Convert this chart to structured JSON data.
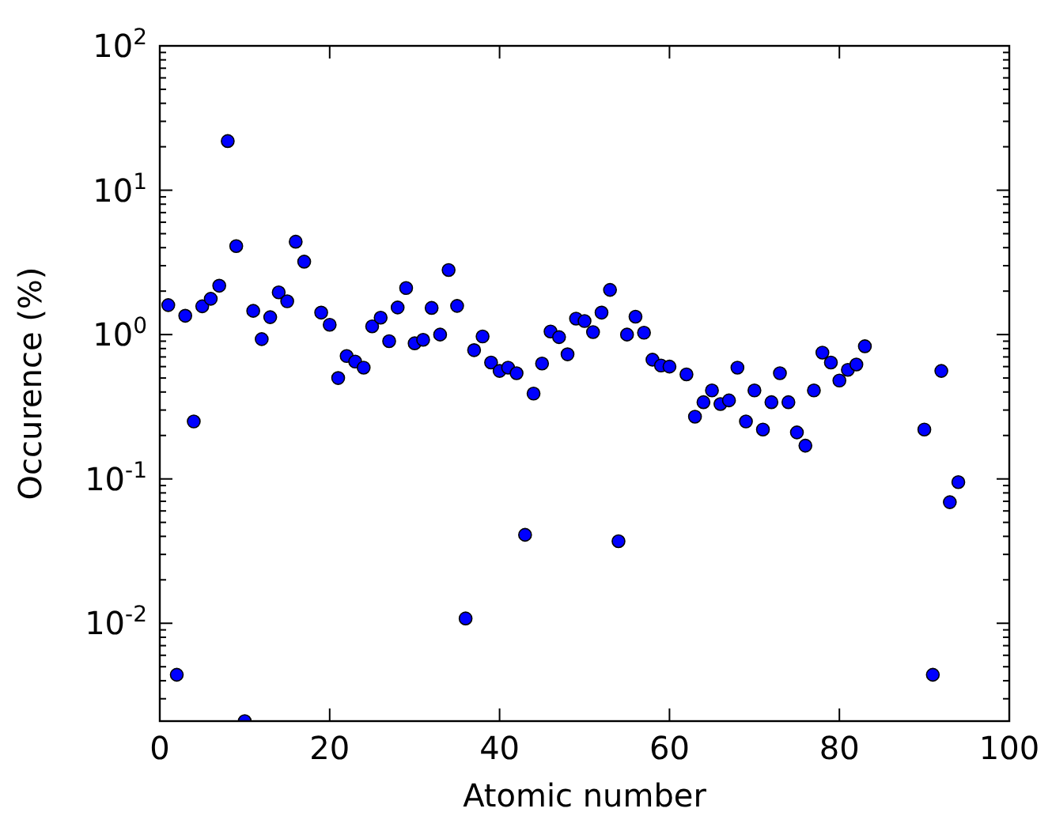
{
  "chart_data": {
    "type": "scatter",
    "xlabel": "Atomic number",
    "ylabel": "Occurence (%)",
    "log": "y",
    "marker": "circle",
    "grid": false,
    "xlim": [
      0,
      100
    ],
    "xticks": [
      0,
      20,
      40,
      60,
      80,
      100
    ],
    "ylim": [
      0.0021,
      100
    ],
    "yticks": [
      {
        "value": 0.01,
        "label": "10$^{-2}$"
      },
      {
        "value": 0.1,
        "label": "10$^{-1}$"
      },
      {
        "value": 1,
        "label": "10$^{0}$"
      },
      {
        "value": 10,
        "label": "10$^{1}$"
      },
      {
        "value": 100,
        "label": "10$^{2}$"
      }
    ],
    "series": [
      {
        "color": "#0000ff",
        "x": [
          1,
          2,
          3,
          4,
          5,
          6,
          7,
          8,
          9,
          10,
          11,
          12,
          13,
          14,
          15,
          16,
          17,
          19,
          20,
          21,
          22,
          23,
          24,
          25,
          26,
          27,
          28,
          29,
          30,
          31,
          32,
          33,
          34,
          35,
          36,
          37,
          38,
          39,
          40,
          41,
          42,
          43,
          44,
          45,
          46,
          47,
          48,
          49,
          50,
          51,
          52,
          53,
          54,
          55,
          56,
          57,
          58,
          59,
          60,
          62,
          63,
          64,
          65,
          66,
          67,
          68,
          69,
          70,
          71,
          72,
          73,
          74,
          75,
          76,
          77,
          78,
          79,
          80,
          81,
          82,
          83,
          90,
          91,
          92,
          93,
          94
        ],
        "values": [
          1.6,
          0.0044,
          1.35,
          0.25,
          1.57,
          1.77,
          2.18,
          21.9,
          4.1,
          0.0021,
          1.46,
          0.93,
          1.32,
          1.96,
          1.7,
          4.4,
          3.2,
          1.42,
          1.17,
          0.5,
          0.71,
          0.65,
          0.59,
          1.14,
          1.31,
          0.9,
          1.54,
          2.1,
          0.87,
          0.92,
          1.53,
          1.0,
          2.8,
          1.58,
          0.0108,
          0.78,
          0.97,
          0.64,
          0.56,
          0.59,
          0.54,
          0.041,
          0.39,
          0.63,
          1.05,
          0.96,
          0.73,
          1.29,
          1.24,
          1.04,
          1.42,
          2.04,
          0.037,
          1.0,
          1.33,
          1.03,
          0.67,
          0.61,
          0.6,
          0.53,
          0.27,
          0.34,
          0.41,
          0.33,
          0.35,
          0.59,
          0.25,
          0.41,
          0.22,
          0.34,
          0.54,
          0.34,
          0.21,
          0.17,
          0.41,
          0.75,
          0.64,
          0.48,
          0.57,
          0.62,
          0.83,
          0.22,
          0.0044,
          0.56,
          0.069,
          0.095
        ]
      }
    ]
  }
}
